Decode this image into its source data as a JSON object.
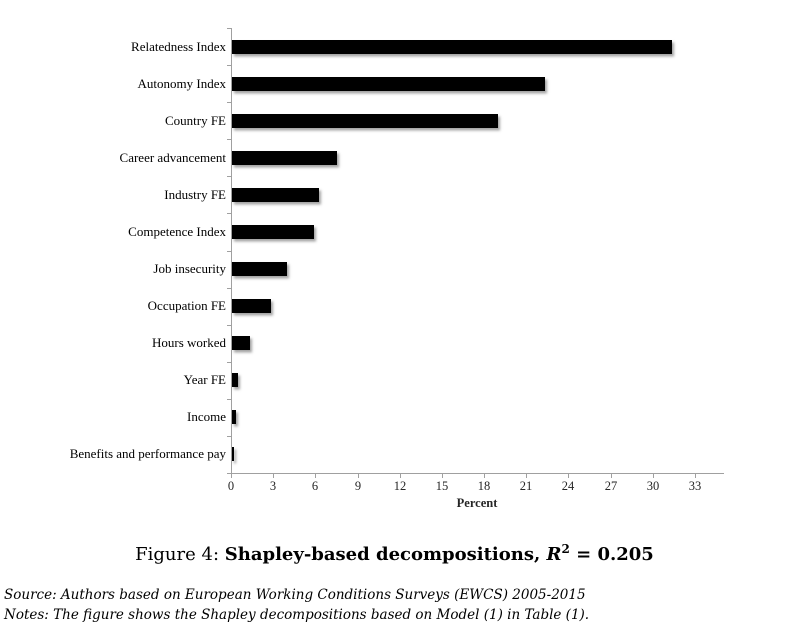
{
  "chart_data": {
    "type": "bar",
    "orientation": "horizontal",
    "title": "Figure 4: Shapley-based decompositions, R² = 0.205",
    "categories": [
      "Relatedness Index",
      "Autonomy Index",
      "Country FE",
      "Career advancement",
      "Industry FE",
      "Competence Index",
      "Job insecurity",
      "Occupation FE",
      "Hours worked",
      "Year FE",
      "Income",
      "Benefits and performance pay"
    ],
    "values": [
      31.3,
      22.3,
      18.9,
      7.5,
      6.2,
      5.8,
      3.9,
      2.8,
      1.3,
      0.4,
      0.3,
      0.15
    ],
    "xlabel": "Percent",
    "ylabel": "",
    "xlim": [
      0,
      35
    ],
    "xticks": [
      0,
      3,
      6,
      9,
      12,
      15,
      18,
      21,
      24,
      27,
      30,
      33
    ],
    "grid": false,
    "legend_position": "none",
    "bar_color": "#000000",
    "axis_color": "#a0a0a0"
  },
  "caption": {
    "prefix": "Figure 4: ",
    "bold_title": "Shapley-based decompositions, ",
    "r_symbol": "R",
    "r_exponent": "2",
    "r_rest": " = 0.205"
  },
  "footer": {
    "source": "Source: Authors based on European Working Conditions Surveys (EWCS) 2005-2015",
    "notes": "Notes: The figure shows the Shapley decompositions based on Model (1) in Table (1)."
  }
}
